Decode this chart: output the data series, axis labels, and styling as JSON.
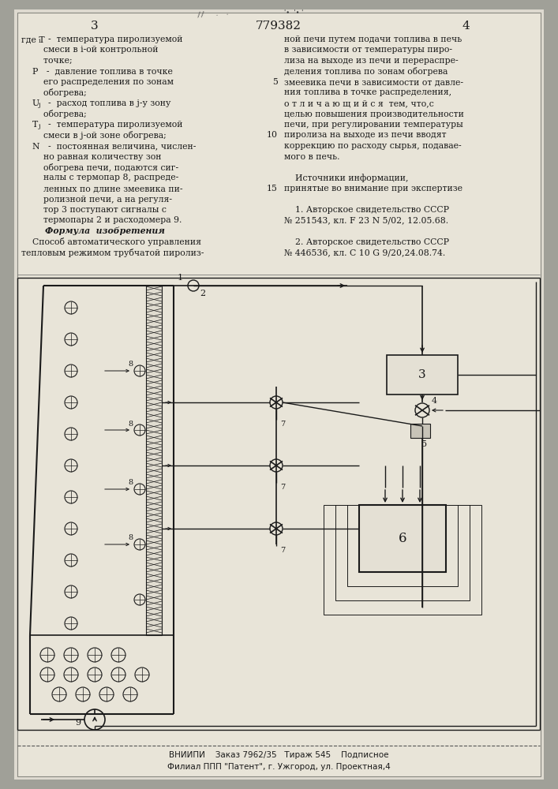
{
  "bg_color": "#b8b4a8",
  "page_color": "#e8e4d8",
  "text_color": "#1a1a1a",
  "header_num": "779382",
  "page_left": "3",
  "page_right": "4",
  "footer_line1": "ВНИИПИ    Заказ 7962/35   Тираж 545    Подписное",
  "footer_line2": "Филиал ППП \"Патент\", г. Ужгород, ул. Проектная,4"
}
